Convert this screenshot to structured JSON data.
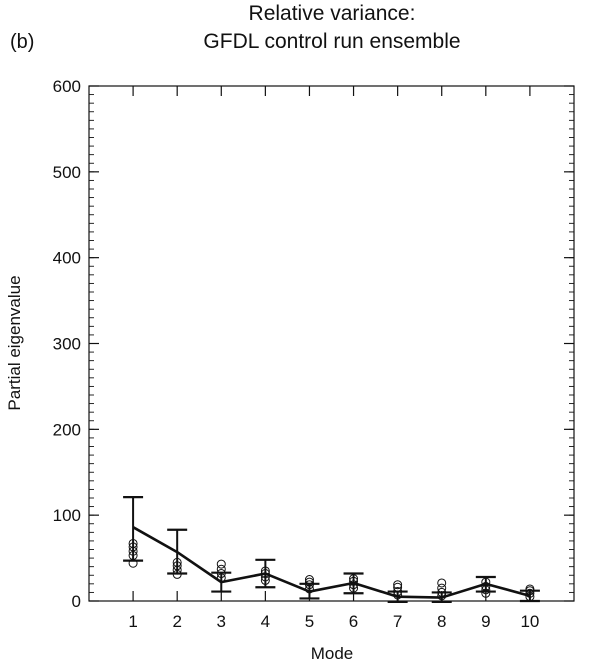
{
  "chart_data": {
    "type": "line",
    "panel_label": "(b)",
    "title_lines": [
      "Relative variance:",
      "GFDL control run ensemble"
    ],
    "xlabel": "Mode",
    "ylabel": "Partial eigenvalue",
    "xlim": [
      0,
      11
    ],
    "ylim": [
      0,
      600
    ],
    "x_ticks": [
      1,
      2,
      3,
      4,
      5,
      6,
      7,
      8,
      9,
      10
    ],
    "x_tick_labels": [
      "1",
      "2",
      "3",
      "4",
      "5",
      "6",
      "7",
      "8",
      "9",
      "10"
    ],
    "y_ticks": [
      0,
      100,
      200,
      300,
      400,
      500,
      600
    ],
    "y_tick_labels": [
      "0",
      "100",
      "200",
      "300",
      "400",
      "500",
      "600"
    ],
    "grid": false,
    "series": [
      {
        "x": [
          1,
          2,
          3,
          4,
          5,
          6,
          7,
          8,
          9,
          10
        ],
        "mean": [
          86,
          57,
          22,
          32,
          11,
          21,
          5,
          4,
          20,
          6
        ],
        "err_low": [
          47,
          32,
          11,
          16,
          3,
          9,
          -1,
          -1,
          11,
          0
        ],
        "err_high": [
          121,
          83,
          33,
          48,
          20,
          32,
          11,
          10,
          28,
          12
        ],
        "members": [
          [
            44,
            53,
            58,
            63,
            67
          ],
          [
            31,
            36,
            41,
            45
          ],
          [
            27,
            32,
            37,
            43
          ],
          [
            24,
            28,
            32,
            35
          ],
          [
            14,
            19,
            22,
            25
          ],
          [
            15,
            19,
            23,
            26
          ],
          [
            7,
            11,
            16,
            19
          ],
          [
            6,
            10,
            15,
            21
          ],
          [
            9,
            13,
            17,
            22
          ],
          [
            5,
            9,
            12,
            14
          ]
        ]
      }
    ]
  }
}
